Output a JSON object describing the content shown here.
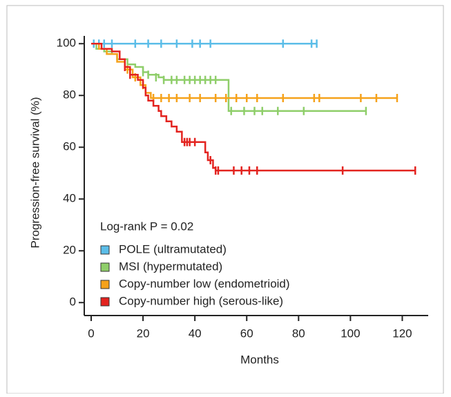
{
  "chart_data": {
    "type": "survival",
    "x_label": "Months",
    "y_label": "Progression-free survival (%)",
    "annotation": "Log-rank P = 0.02",
    "xlim": [
      0,
      130
    ],
    "ylim": [
      -5,
      103
    ],
    "xticks": [
      0,
      20,
      40,
      60,
      80,
      100,
      120
    ],
    "yticks": [
      0,
      20,
      40,
      60,
      80,
      100
    ],
    "series": [
      {
        "name": "POLE (ultramutated)",
        "color": "#5bbde8",
        "x": [
          0,
          87
        ],
        "values": [
          100,
          100
        ],
        "censored_x": [
          1,
          3,
          5,
          8,
          17,
          22,
          27,
          33,
          39,
          42,
          46,
          74,
          85,
          87
        ],
        "censored_values": [
          100,
          100,
          100,
          100,
          100,
          100,
          100,
          100,
          100,
          100,
          100,
          100,
          100,
          100
        ]
      },
      {
        "name": "MSI (hypermutated)",
        "color": "#8fce6a",
        "x": [
          0,
          2,
          5,
          8,
          10,
          14,
          17,
          20,
          22,
          26,
          28,
          53,
          106
        ],
        "values": [
          100,
          98,
          97,
          96,
          94,
          92,
          91,
          89,
          88,
          87,
          86,
          74,
          74
        ],
        "censored_x": [
          20,
          22,
          25,
          28,
          31,
          33,
          36,
          38,
          40,
          42,
          44,
          46,
          48,
          54,
          59,
          63,
          66,
          72,
          82,
          106
        ],
        "censored_values": [
          89,
          88,
          87,
          86,
          86,
          86,
          86,
          86,
          86,
          86,
          86,
          86,
          86,
          74,
          74,
          74,
          74,
          74,
          74,
          74
        ]
      },
      {
        "name": "Copy-number low (endometrioid)",
        "color": "#f5a21b",
        "x": [
          0,
          3,
          6,
          10,
          13,
          16,
          19,
          21,
          23,
          118
        ],
        "values": [
          100,
          98,
          96,
          93,
          90,
          87,
          84,
          81,
          79,
          79
        ],
        "censored_x": [
          14,
          17,
          20,
          24,
          27,
          30,
          33,
          38,
          42,
          48,
          52,
          56,
          60,
          64,
          74,
          86,
          88,
          104,
          110,
          118
        ],
        "censored_values": [
          90,
          87,
          84,
          79,
          79,
          79,
          79,
          79,
          79,
          79,
          79,
          79,
          79,
          79,
          79,
          79,
          79,
          79,
          79,
          79
        ]
      },
      {
        "name": "Copy-number high (serous-like)",
        "color": "#e3231f",
        "x": [
          0,
          4,
          8,
          11,
          13,
          15,
          18,
          20,
          21,
          22,
          24,
          26,
          27,
          29,
          31,
          33,
          35,
          44,
          45,
          47,
          48,
          125
        ],
        "values": [
          100,
          98,
          97,
          94,
          91,
          88,
          86,
          83,
          80,
          78,
          76,
          74,
          72,
          70,
          68,
          66,
          62,
          58,
          55,
          52,
          51,
          51
        ],
        "censored_x": [
          13,
          15,
          36,
          37,
          38,
          40,
          46,
          48,
          49,
          55,
          58,
          61,
          64,
          97,
          125
        ],
        "censored_values": [
          91,
          88,
          62,
          62,
          62,
          62,
          55,
          51,
          51,
          51,
          51,
          51,
          51,
          51,
          51
        ]
      }
    ]
  }
}
